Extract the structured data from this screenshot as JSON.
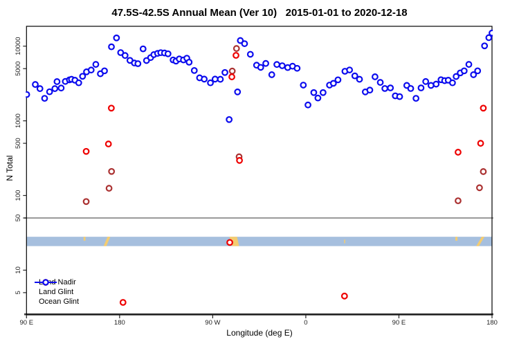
{
  "chart_data": {
    "type": "scatter",
    "title": "47.5S-42.5S Annual Mean (Ver 10)   2015-01-01 to 2020-12-18",
    "xlabel": "Longitude (deg E)",
    "ylabel": "N Total",
    "x_axis": {
      "range": [
        90,
        540
      ],
      "note": "longitude axis continues eastward: 90E to 180 wrapping past 90W, 0, 90E to 180",
      "ticks": [
        {
          "value": 90,
          "label": "90 E"
        },
        {
          "value": 180,
          "label": "180"
        },
        {
          "value": 270,
          "label": "90 W"
        },
        {
          "value": 360,
          "label": "0"
        },
        {
          "value": 450,
          "label": "90 E"
        },
        {
          "value": 540,
          "label": "180"
        }
      ]
    },
    "y_axis": {
      "scale": "log",
      "range": [
        2.5,
        18500
      ],
      "ticks": [
        {
          "value": 10000,
          "label": "10000"
        },
        {
          "value": 5000,
          "label": "5000"
        },
        {
          "value": 1000,
          "label": "1000"
        },
        {
          "value": 500,
          "label": "500"
        },
        {
          "value": 100,
          "label": "100"
        },
        {
          "value": 50,
          "label": "50"
        },
        {
          "value": 10,
          "label": "10"
        },
        {
          "value": 5,
          "label": "5"
        }
      ]
    },
    "reference_line": {
      "value": 50,
      "color": "#9a9a9a"
    },
    "map_band": {
      "description": "land/ocean strip map of the 47.5S-42.5S latitude band",
      "value_top": 28,
      "value_bottom": 21,
      "ocean_color": "#a6bfde",
      "land_color": "#f4cc70",
      "land_patches": [
        {
          "lon": 145.2,
          "len": 1.8,
          "shape": "dot-top"
        },
        {
          "lon": 164.5,
          "len": 6.5,
          "shape": "slash"
        },
        {
          "lon": 286.2,
          "len": 9.3,
          "shape": "patch"
        },
        {
          "lon": 397.1,
          "len": 1.0,
          "shape": "dot-mid"
        },
        {
          "lon": 504.6,
          "len": 2.0,
          "shape": "dot-top"
        },
        {
          "lon": 524.7,
          "len": 8.0,
          "shape": "slash"
        }
      ]
    },
    "legend": {
      "position": "bottom-left"
    },
    "series": [
      {
        "name": "Land Nadir",
        "color": "#ab3232",
        "points": [
          [
            147.7,
            83
          ],
          [
            169.8,
            125
          ],
          [
            172.2,
            210
          ],
          [
            288.9,
            4640
          ],
          [
            293,
            9310
          ],
          [
            295.5,
            330
          ],
          [
            507.2,
            85
          ],
          [
            527.9,
            127
          ],
          [
            531.6,
            209
          ]
        ]
      },
      {
        "name": "Land Glint",
        "color": "#ee0000",
        "points": [
          [
            147.7,
            390
          ],
          [
            169.2,
            490
          ],
          [
            172,
            1480
          ],
          [
            183.3,
            3.7
          ],
          [
            286.5,
            23.5
          ],
          [
            288.5,
            3880
          ],
          [
            292.5,
            7530
          ],
          [
            295.9,
            295
          ],
          [
            397.4,
            4.5
          ],
          [
            507.2,
            380
          ],
          [
            529,
            500
          ],
          [
            531.6,
            1480
          ]
        ]
      },
      {
        "name": "Ocean Glint",
        "color": "#0b0bee",
        "points": [
          [
            90.2,
            2250
          ],
          [
            98.5,
            3070
          ],
          [
            103,
            2700
          ],
          [
            107.5,
            2000
          ],
          [
            112.3,
            2450
          ],
          [
            117.4,
            2700
          ],
          [
            119.5,
            3350
          ],
          [
            123.5,
            2750
          ],
          [
            127.5,
            3370
          ],
          [
            131.5,
            3540
          ],
          [
            133.5,
            3600
          ],
          [
            136.8,
            3500
          ],
          [
            140.5,
            3230
          ],
          [
            144.2,
            3950
          ],
          [
            148,
            4530
          ],
          [
            152.5,
            4790
          ],
          [
            157,
            5700
          ],
          [
            161.4,
            4270
          ],
          [
            165.4,
            4670
          ],
          [
            172.1,
            9800
          ],
          [
            177,
            12900
          ],
          [
            181,
            8200
          ],
          [
            185.3,
            7500
          ],
          [
            190,
            6450
          ],
          [
            194.3,
            5950
          ],
          [
            197.7,
            5830
          ],
          [
            202.7,
            9200
          ],
          [
            206,
            6420
          ],
          [
            210,
            7030
          ],
          [
            213.1,
            7700
          ],
          [
            216.7,
            8000
          ],
          [
            219.8,
            8180
          ],
          [
            223.4,
            8100
          ],
          [
            226.8,
            7900
          ],
          [
            231.7,
            6540
          ],
          [
            234.5,
            6310
          ],
          [
            237.7,
            6740
          ],
          [
            241.7,
            6540
          ],
          [
            245,
            6900
          ],
          [
            247.2,
            6100
          ],
          [
            252.2,
            4720
          ],
          [
            257.3,
            3770
          ],
          [
            261.8,
            3620
          ],
          [
            267.8,
            3230
          ],
          [
            272.3,
            3620
          ],
          [
            277.4,
            3600
          ],
          [
            281.8,
            4440
          ],
          [
            285.9,
            1040
          ],
          [
            294,
            2440
          ],
          [
            296.7,
            11900
          ],
          [
            300.8,
            10800
          ],
          [
            306.4,
            7780
          ],
          [
            312.4,
            5560
          ],
          [
            316.4,
            5200
          ],
          [
            321.3,
            5870
          ],
          [
            327.1,
            4150
          ],
          [
            332,
            5680
          ],
          [
            337.2,
            5470
          ],
          [
            342.5,
            5170
          ],
          [
            347.2,
            5390
          ],
          [
            351.6,
            5050
          ],
          [
            357.6,
            3010
          ],
          [
            362.1,
            1630
          ],
          [
            367.7,
            2390
          ],
          [
            371.7,
            2020
          ],
          [
            376.7,
            2390
          ],
          [
            382.9,
            3010
          ],
          [
            386.7,
            3180
          ],
          [
            391.1,
            3540
          ],
          [
            397.8,
            4610
          ],
          [
            402.3,
            4800
          ],
          [
            407.4,
            4000
          ],
          [
            411.9,
            3600
          ],
          [
            417.5,
            2440
          ],
          [
            421.9,
            2580
          ],
          [
            426.9,
            3890
          ],
          [
            432,
            3270
          ],
          [
            436.4,
            2710
          ],
          [
            441.8,
            2760
          ],
          [
            446.5,
            2160
          ],
          [
            450.7,
            2110
          ],
          [
            457.6,
            2980
          ],
          [
            461.4,
            2710
          ],
          [
            466.5,
            2000
          ],
          [
            471.4,
            2760
          ],
          [
            475.9,
            3360
          ],
          [
            481,
            2980
          ],
          [
            486,
            3100
          ],
          [
            490.7,
            3550
          ],
          [
            494.2,
            3450
          ],
          [
            497.7,
            3500
          ],
          [
            501.8,
            3230
          ],
          [
            505.3,
            3920
          ],
          [
            509.3,
            4380
          ],
          [
            513.1,
            4670
          ],
          [
            517.6,
            5700
          ],
          [
            522.1,
            4150
          ],
          [
            526.1,
            4670
          ],
          [
            532.8,
            10100
          ],
          [
            536.9,
            13000
          ],
          [
            540,
            15000
          ]
        ]
      }
    ]
  }
}
